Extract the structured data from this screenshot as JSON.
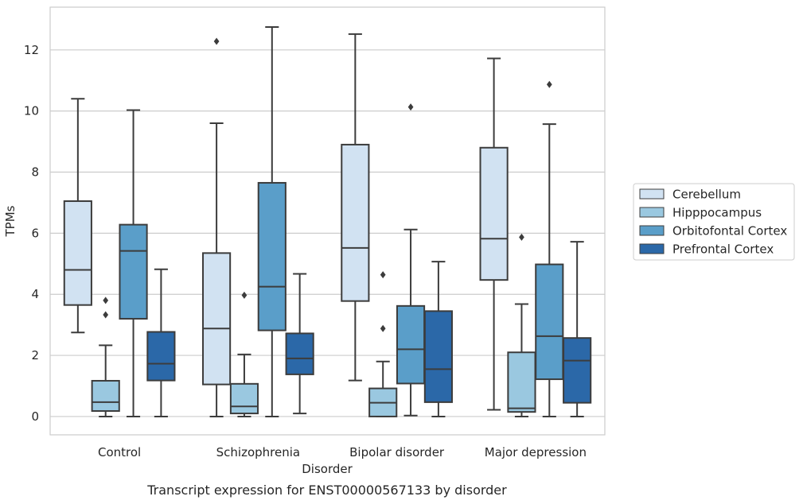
{
  "chart_data": {
    "type": "box",
    "xlabel": "Disorder",
    "ylabel": "TPMs",
    "caption": "Transcript expression for ENST00000567133 by disorder",
    "categories": [
      "Control",
      "Schizophrenia",
      "Bipolar disorder",
      "Major depression"
    ],
    "ylim": [
      -0.6,
      13.4
    ],
    "yticks": [
      0,
      2,
      4,
      6,
      8,
      10,
      12
    ],
    "grid": "horizontal",
    "legend_position": "right",
    "series": [
      {
        "name": "Cerebellum",
        "color": "#d1e2f2",
        "boxes": [
          {
            "whislo": 2.75,
            "q1": 3.65,
            "med": 4.8,
            "q3": 7.05,
            "whishi": 10.4,
            "fliers": []
          },
          {
            "whislo": 0.0,
            "q1": 1.05,
            "med": 2.88,
            "q3": 5.35,
            "whishi": 9.6,
            "fliers": [
              12.28
            ]
          },
          {
            "whislo": 1.18,
            "q1": 3.78,
            "med": 5.52,
            "q3": 8.9,
            "whishi": 12.52,
            "fliers": []
          },
          {
            "whislo": 0.22,
            "q1": 4.47,
            "med": 5.82,
            "q3": 8.8,
            "whishi": 11.72,
            "fliers": []
          }
        ]
      },
      {
        "name": "Hipppocampus",
        "color": "#9ac8e0",
        "boxes": [
          {
            "whislo": 0.0,
            "q1": 0.18,
            "med": 0.47,
            "q3": 1.17,
            "whishi": 2.33,
            "fliers": [
              3.8,
              3.33
            ]
          },
          {
            "whislo": 0.0,
            "q1": 0.1,
            "med": 0.33,
            "q3": 1.07,
            "whishi": 2.03,
            "fliers": [
              3.97
            ]
          },
          {
            "whislo": 0.0,
            "q1": 0.0,
            "med": 0.45,
            "q3": 0.92,
            "whishi": 1.8,
            "fliers": [
              4.64,
              2.88
            ]
          },
          {
            "whislo": 0.0,
            "q1": 0.15,
            "med": 0.27,
            "q3": 2.1,
            "whishi": 3.68,
            "fliers": [
              5.87
            ]
          }
        ]
      },
      {
        "name": "Orbitofontal Cortex",
        "color": "#5a9ec9",
        "boxes": [
          {
            "whislo": 0.0,
            "q1": 3.2,
            "med": 5.42,
            "q3": 6.28,
            "whishi": 10.03,
            "fliers": []
          },
          {
            "whislo": 0.0,
            "q1": 2.82,
            "med": 4.25,
            "q3": 7.65,
            "whishi": 12.75,
            "fliers": []
          },
          {
            "whislo": 0.03,
            "q1": 1.08,
            "med": 2.2,
            "q3": 3.62,
            "whishi": 6.12,
            "fliers": [
              10.13
            ]
          },
          {
            "whislo": 0.0,
            "q1": 1.22,
            "med": 2.63,
            "q3": 4.98,
            "whishi": 9.57,
            "fliers": [
              10.87
            ]
          }
        ]
      },
      {
        "name": "Prefrontal Cortex",
        "color": "#2b68a8",
        "boxes": [
          {
            "whislo": 0.0,
            "q1": 1.18,
            "med": 1.73,
            "q3": 2.77,
            "whishi": 4.82,
            "fliers": []
          },
          {
            "whislo": 0.1,
            "q1": 1.38,
            "med": 1.9,
            "q3": 2.72,
            "whishi": 4.67,
            "fliers": []
          },
          {
            "whislo": 0.0,
            "q1": 0.47,
            "med": 1.55,
            "q3": 3.45,
            "whishi": 5.07,
            "fliers": []
          },
          {
            "whislo": 0.0,
            "q1": 0.45,
            "med": 1.83,
            "q3": 2.57,
            "whishi": 5.72,
            "fliers": []
          }
        ]
      }
    ]
  },
  "colors": {
    "box_edge": "#3c3c3c",
    "grid": "#cccccc",
    "axes_border": "#cccccc",
    "text": "#262626"
  }
}
